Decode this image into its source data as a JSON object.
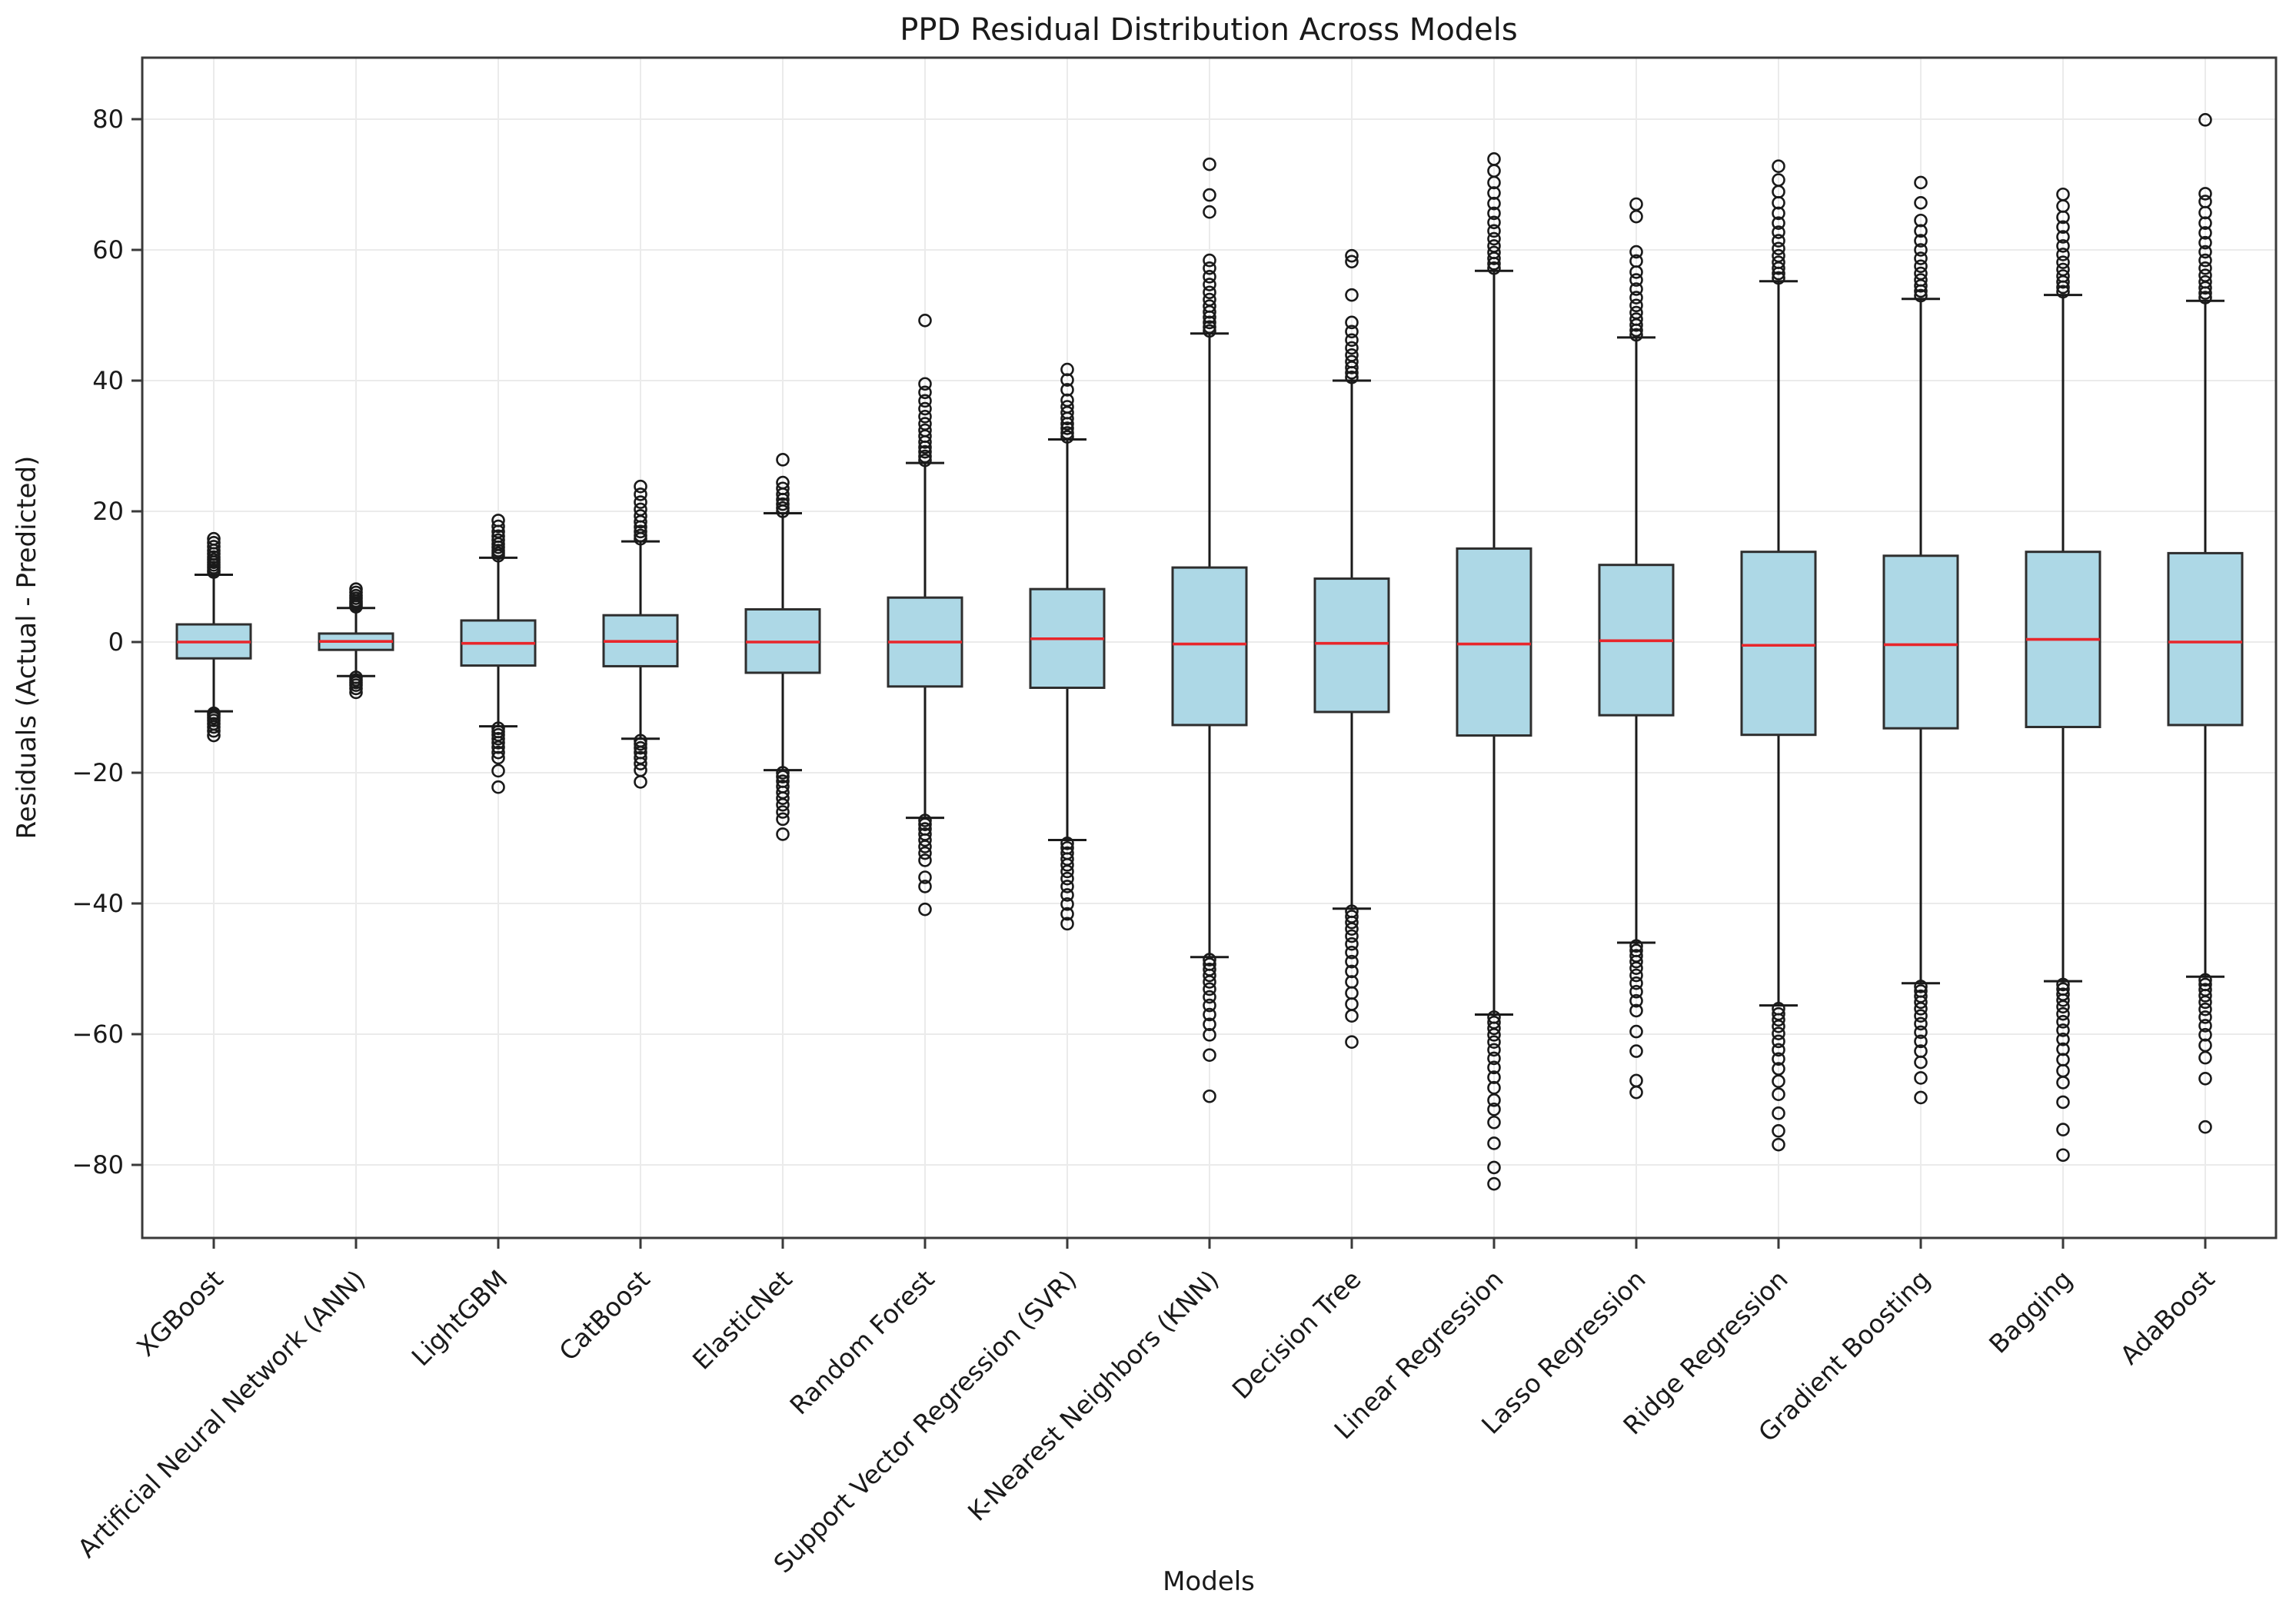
{
  "chart_data": {
    "type": "boxplot",
    "title": "PPD Residual Distribution Across Models",
    "xlabel": "Models",
    "ylabel": "Residuals (Actual - Predicted)",
    "ylim": [
      -91.2,
      89.4
    ],
    "yticks": [
      -80,
      -60,
      -40,
      -20,
      0,
      20,
      40,
      60,
      80
    ],
    "grid": true,
    "legend": "none",
    "colors": {
      "box_fill": "#ADD8E6",
      "box_edge": "#2e2e2e",
      "median": "#e8262b",
      "whisker": "#1a1a1a",
      "outlier_edge": "#1a1a1a",
      "gridline": "#ebebeb",
      "spine": "#3a3a3a",
      "text": "#1a1a1a",
      "background": "#ffffff"
    },
    "categories": [
      "XGBoost",
      "Artificial Neural Network (ANN)",
      "LightGBM",
      "CatBoost",
      "ElasticNet",
      "Random Forest",
      "Support Vector Regression (SVR)",
      "K-Nearest Neighbors (KNN)",
      "Decision Tree",
      "Linear Regression",
      "Lasso Regression",
      "Ridge Regression",
      "Gradient Boosting",
      "Bagging",
      "AdaBoost"
    ],
    "series": [
      {
        "name": "XGBoost",
        "q1": -2.5,
        "median": 0.0,
        "q3": 2.7,
        "whisker_low": -10.6,
        "whisker_high": 10.3,
        "outliers_high": [
          10.7,
          11.0,
          11.4,
          11.8,
          12.2,
          12.6,
          13.0,
          13.5,
          14.0,
          14.6,
          15.2,
          15.8
        ],
        "outliers_low": [
          -10.9,
          -11.2,
          -11.6,
          -12.0,
          -12.5,
          -13.0,
          -13.6,
          -14.3
        ]
      },
      {
        "name": "Artificial Neural Network (ANN)",
        "q1": -1.2,
        "median": 0.1,
        "q3": 1.3,
        "whisker_low": -5.2,
        "whisker_high": 5.2,
        "outliers_high": [
          5.4,
          5.7,
          6.0,
          6.3,
          6.7,
          7.1,
          7.6,
          8.1
        ],
        "outliers_low": [
          -5.4,
          -5.8,
          -6.2,
          -6.6,
          -7.1,
          -7.7
        ]
      },
      {
        "name": "LightGBM",
        "q1": -3.6,
        "median": -0.2,
        "q3": 3.3,
        "whisker_low": -12.9,
        "whisker_high": 12.9,
        "outliers_high": [
          13.2,
          13.6,
          14.0,
          14.5,
          15.0,
          15.6,
          16.2,
          16.9,
          17.7,
          18.6
        ],
        "outliers_low": [
          -13.2,
          -13.7,
          -14.2,
          -14.8,
          -15.4,
          -16.1,
          -16.9,
          -17.7,
          -19.7,
          -22.2
        ]
      },
      {
        "name": "CatBoost",
        "q1": -3.7,
        "median": 0.1,
        "q3": 4.1,
        "whisker_low": -14.8,
        "whisker_high": 15.4,
        "outliers_high": [
          15.8,
          16.3,
          16.9,
          17.6,
          18.4,
          19.3,
          20.3,
          21.4,
          22.6,
          23.8
        ],
        "outliers_low": [
          -15.1,
          -15.6,
          -16.2,
          -16.9,
          -17.7,
          -18.6,
          -19.6,
          -21.4
        ]
      },
      {
        "name": "ElasticNet",
        "q1": -4.7,
        "median": 0.0,
        "q3": 5.0,
        "whisker_low": -19.6,
        "whisker_high": 19.7,
        "outliers_high": [
          20.0,
          20.5,
          21.1,
          21.8,
          22.6,
          23.5,
          24.4,
          27.9
        ],
        "outliers_low": [
          -20.0,
          -20.6,
          -21.3,
          -22.1,
          -23.0,
          -23.9,
          -24.9,
          -26.0,
          -27.1,
          -29.4
        ]
      },
      {
        "name": "Random Forest",
        "q1": -6.8,
        "median": 0.0,
        "q3": 6.8,
        "whisker_low": -26.9,
        "whisker_high": 27.4,
        "outliers_high": [
          27.8,
          28.4,
          29.1,
          29.8,
          30.6,
          31.5,
          32.4,
          33.4,
          34.5,
          35.7,
          36.9,
          38.2,
          39.5,
          49.2
        ],
        "outliers_low": [
          -27.3,
          -27.9,
          -28.6,
          -29.4,
          -30.3,
          -31.3,
          -32.3,
          -33.4,
          -36.0,
          -37.4,
          -40.9
        ]
      },
      {
        "name": "Support Vector Regression (SVR)",
        "q1": -7.0,
        "median": 0.5,
        "q3": 8.1,
        "whisker_low": -30.3,
        "whisker_high": 31.0,
        "outliers_high": [
          31.4,
          32.0,
          32.7,
          33.4,
          34.2,
          35.1,
          36.0,
          37.0,
          38.6,
          40.1,
          41.7
        ],
        "outliers_low": [
          -30.8,
          -31.5,
          -32.3,
          -33.2,
          -34.1,
          -35.1,
          -36.2,
          -37.4,
          -38.7,
          -40.1,
          -41.6,
          -43.1
        ]
      },
      {
        "name": "K-Nearest Neighbors (KNN)",
        "q1": -12.7,
        "median": -0.3,
        "q3": 11.4,
        "whisker_low": -48.2,
        "whisker_high": 47.2,
        "outliers_high": [
          47.6,
          48.2,
          48.9,
          49.7,
          50.5,
          51.4,
          52.4,
          53.5,
          54.7,
          55.9,
          57.2,
          58.4,
          65.8,
          68.4,
          73.1
        ],
        "outliers_low": [
          -48.6,
          -49.3,
          -50.1,
          -51.0,
          -52.0,
          -53.1,
          -54.3,
          -55.6,
          -57.0,
          -58.5,
          -60.1,
          -63.2,
          -69.5
        ]
      },
      {
        "name": "Decision Tree",
        "q1": -10.7,
        "median": -0.2,
        "q3": 9.7,
        "whisker_low": -40.8,
        "whisker_high": 40.0,
        "outliers_high": [
          40.5,
          41.2,
          42.0,
          42.9,
          43.9,
          45.0,
          46.2,
          47.5,
          48.9,
          53.1,
          58.2,
          59.1
        ],
        "outliers_low": [
          -41.2,
          -42.0,
          -42.9,
          -43.9,
          -45.0,
          -46.2,
          -47.5,
          -48.9,
          -50.4,
          -52.0,
          -53.7,
          -55.4,
          -57.2,
          -61.2
        ]
      },
      {
        "name": "Linear Regression",
        "q1": -14.3,
        "median": -0.3,
        "q3": 14.3,
        "whisker_low": -57.0,
        "whisker_high": 56.8,
        "outliers_high": [
          57.2,
          57.9,
          58.7,
          59.6,
          60.6,
          61.7,
          62.9,
          64.2,
          65.6,
          67.1,
          68.7,
          70.3,
          72.1,
          73.9
        ],
        "outliers_low": [
          -57.4,
          -58.2,
          -59.1,
          -60.1,
          -61.2,
          -62.4,
          -63.7,
          -65.1,
          -66.6,
          -68.2,
          -70.1,
          -71.5,
          -73.5,
          -76.7,
          -80.4,
          -82.9
        ]
      },
      {
        "name": "Lasso Regression",
        "q1": -11.2,
        "median": 0.2,
        "q3": 11.8,
        "whisker_low": -46.0,
        "whisker_high": 46.6,
        "outliers_high": [
          47.0,
          47.7,
          48.5,
          49.4,
          50.4,
          51.5,
          52.7,
          54.0,
          55.4,
          56.6,
          58.3,
          59.7,
          65.1,
          67.0
        ],
        "outliers_low": [
          -46.5,
          -47.2,
          -48.0,
          -48.9,
          -49.9,
          -51.0,
          -52.2,
          -53.5,
          -54.9,
          -56.4,
          -59.6,
          -62.6,
          -67.1,
          -68.9
        ]
      },
      {
        "name": "Ridge Regression",
        "q1": -14.2,
        "median": -0.5,
        "q3": 13.8,
        "whisker_low": -55.6,
        "whisker_high": 55.2,
        "outliers_high": [
          55.7,
          56.4,
          57.2,
          58.1,
          59.1,
          60.2,
          61.4,
          62.7,
          64.1,
          65.6,
          67.2,
          68.9,
          70.7,
          72.8
        ],
        "outliers_low": [
          -56.1,
          -56.9,
          -57.8,
          -58.8,
          -59.9,
          -61.1,
          -62.4,
          -63.8,
          -65.3,
          -67.2,
          -69.2,
          -72.1,
          -74.8,
          -76.9
        ]
      },
      {
        "name": "Gradient Boosting",
        "q1": -13.2,
        "median": -0.4,
        "q3": 13.2,
        "whisker_low": -52.2,
        "whisker_high": 52.5,
        "outliers_high": [
          53.0,
          53.7,
          54.5,
          55.4,
          56.4,
          57.5,
          58.7,
          60.0,
          61.4,
          62.9,
          64.5,
          67.2,
          70.3
        ],
        "outliers_low": [
          -52.7,
          -53.4,
          -54.2,
          -55.1,
          -56.1,
          -57.2,
          -58.4,
          -59.7,
          -61.1,
          -62.6,
          -64.3,
          -66.7,
          -69.7
        ]
      },
      {
        "name": "Bagging",
        "q1": -13.0,
        "median": 0.4,
        "q3": 13.8,
        "whisker_low": -51.9,
        "whisker_high": 53.1,
        "outliers_high": [
          53.6,
          54.3,
          55.1,
          56.0,
          57.0,
          58.1,
          59.3,
          60.6,
          62.0,
          63.5,
          65.0,
          66.7,
          68.5
        ],
        "outliers_low": [
          -52.4,
          -53.1,
          -53.9,
          -54.8,
          -55.8,
          -56.9,
          -58.1,
          -59.4,
          -60.8,
          -62.3,
          -63.9,
          -65.6,
          -67.4,
          -70.4,
          -74.6,
          -78.5
        ]
      },
      {
        "name": "AdaBoost",
        "q1": -12.7,
        "median": 0.0,
        "q3": 13.6,
        "whisker_low": -51.2,
        "whisker_high": 52.2,
        "outliers_high": [
          52.7,
          53.4,
          54.2,
          55.1,
          56.1,
          57.2,
          58.4,
          59.7,
          61.1,
          62.6,
          64.1,
          65.7,
          67.4,
          68.6,
          79.9
        ],
        "outliers_low": [
          -51.7,
          -52.4,
          -53.2,
          -54.1,
          -55.1,
          -56.2,
          -57.4,
          -58.7,
          -60.1,
          -61.7,
          -63.6,
          -66.8,
          -74.2
        ]
      }
    ]
  }
}
